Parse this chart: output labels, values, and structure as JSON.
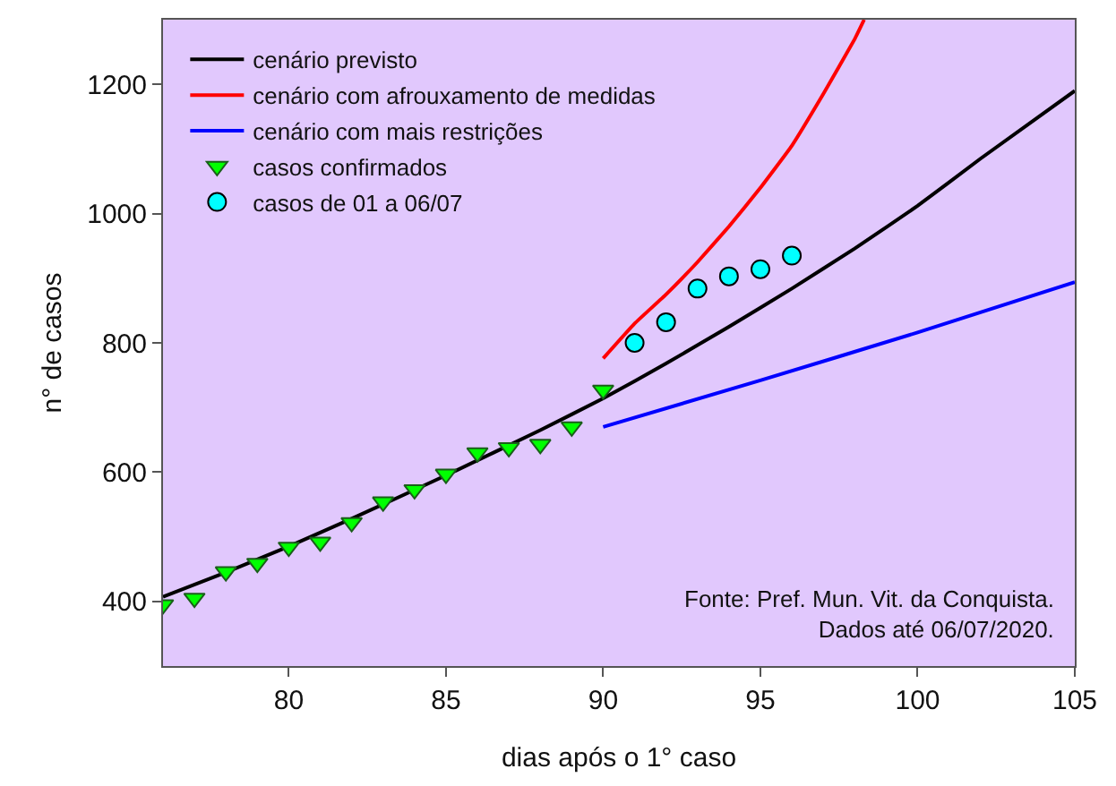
{
  "chart_data": {
    "type": "line",
    "xlabel": "dias após o 1° caso",
    "ylabel": "n° de casos",
    "xlim": [
      76,
      105
    ],
    "xticks": [
      80,
      85,
      90,
      95,
      100,
      105
    ],
    "ylim": [
      300,
      1300
    ],
    "yticks": [
      400,
      600,
      800,
      1000,
      1200
    ],
    "grid": false,
    "legend": "top left",
    "annotations": [
      "Fonte: Pref. Mun. Vit. da Conquista.\nDados até 06/07/2020."
    ],
    "series": [
      {
        "name": "cenário previsto",
        "color": "#000000",
        "x": [
          76,
          78,
          80,
          82,
          85,
          88,
          90,
          92,
          94,
          96,
          98,
          100,
          102,
          105
        ],
        "values": [
          407,
          445,
          485,
          528,
          595,
          665,
          714,
          768,
          825,
          884,
          946,
          1012,
          1085,
          1190
        ]
      },
      {
        "name": "cenário com afrouxamento de medidas",
        "color": "#ff0000",
        "x": [
          90,
          91,
          92,
          93,
          94,
          95,
          96,
          97,
          98,
          98.3
        ],
        "values": [
          776,
          830,
          875,
          925,
          980,
          1040,
          1105,
          1185,
          1270,
          1300
        ]
      },
      {
        "name": "cenário com mais restrições",
        "color": "#0000ff",
        "x": [
          90,
          95,
          100,
          105
        ],
        "values": [
          670,
          742,
          816,
          894
        ]
      },
      {
        "name": "casos confirmados",
        "type": "scatter",
        "marker": "triangle",
        "color": "#00ff00",
        "x": [
          76,
          77,
          78,
          79,
          80,
          81,
          82,
          83,
          84,
          85,
          86,
          87,
          88,
          89,
          90
        ],
        "values": [
          395,
          405,
          446,
          459,
          484,
          492,
          522,
          554,
          573,
          597,
          630,
          638,
          643,
          670,
          727
        ]
      },
      {
        "name": "casos de 01 a 06/07",
        "type": "scatter",
        "marker": "circle",
        "color": "#00ffff",
        "x": [
          91,
          92,
          93,
          94,
          95,
          96
        ],
        "values": [
          800,
          832,
          884,
          903,
          914,
          935
        ]
      }
    ]
  }
}
